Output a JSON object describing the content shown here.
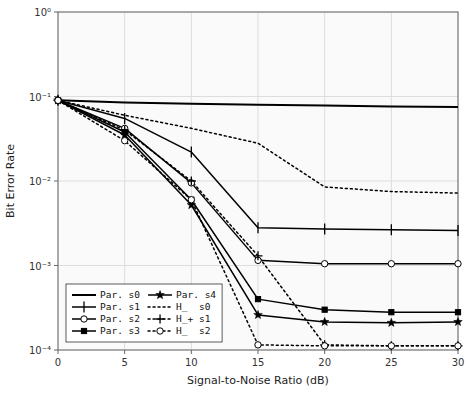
{
  "chart_data": {
    "type": "line",
    "x_label": "Signal-to-Noise Ratio (dB)",
    "y_label": "Bit Error Rate",
    "x": [
      0,
      5,
      10,
      15,
      20,
      25,
      30
    ],
    "xlim": [
      0,
      30
    ],
    "xticks": [
      0,
      5,
      10,
      15,
      20,
      25,
      30
    ],
    "ylim": [
      0.0001,
      1.0
    ],
    "yticks": [
      {
        "value": 0.0001,
        "label": "10⁻⁴"
      },
      {
        "value": 0.001,
        "label": "10⁻³"
      },
      {
        "value": 0.01,
        "label": "10⁻²"
      },
      {
        "value": 0.1,
        "label": "10⁻¹"
      },
      {
        "value": 1.0,
        "label": "10⁰"
      }
    ],
    "log": "y",
    "grid": true,
    "legend": "lower left",
    "series": [
      {
        "name": "Par. s0",
        "color": "#000000",
        "line_style": "solid",
        "marker": "none",
        "values": [
          0.09,
          0.085,
          0.082,
          0.08,
          0.078,
          0.076,
          0.075
        ]
      },
      {
        "name": "Par. s1",
        "color": "#000000",
        "line_style": "solid",
        "marker": "vline",
        "values": [
          0.09,
          0.055,
          0.022,
          0.0028,
          0.0027,
          0.00265,
          0.0026
        ]
      },
      {
        "name": "Par. s2",
        "color": "#000000",
        "line_style": "solid",
        "marker": "circle",
        "values": [
          0.09,
          0.042,
          0.0095,
          0.00115,
          0.00105,
          0.00105,
          0.00105
        ]
      },
      {
        "name": "Par. s3",
        "color": "#000000",
        "line_style": "solid",
        "marker": "square",
        "values": [
          0.09,
          0.038,
          0.006,
          0.0004,
          0.0003,
          0.00028,
          0.00028
        ]
      },
      {
        "name": "Par. s4",
        "color": "#000000",
        "line_style": "solid",
        "marker": "star",
        "values": [
          0.09,
          0.035,
          0.0052,
          0.00026,
          0.000215,
          0.00021,
          0.000215
        ]
      },
      {
        "name": "H_  s0",
        "color": "#000000",
        "line_style": "dotted",
        "marker": "none",
        "values": [
          0.09,
          0.06,
          0.042,
          0.028,
          0.0085,
          0.0075,
          0.0072
        ]
      },
      {
        "name": "H_+ s1",
        "color": "#000000",
        "line_style": "dotted",
        "marker": "plus",
        "values": [
          0.09,
          0.04,
          0.01,
          0.0013,
          0.000115,
          0.000112,
          0.000112
        ]
      },
      {
        "name": "H_  s2",
        "color": "#000000",
        "line_style": "dotted",
        "marker": "circle",
        "values": [
          0.09,
          0.03,
          0.006,
          0.000115,
          0.000112,
          0.000112,
          0.000112
        ]
      }
    ]
  }
}
